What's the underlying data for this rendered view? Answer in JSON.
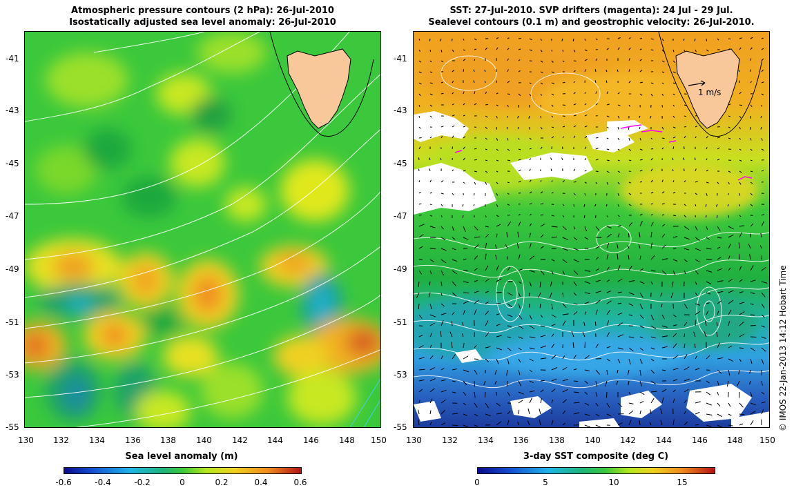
{
  "left_panel": {
    "title_line1": "Atmospheric pressure contours (2 hPa): 26-Jul-2010",
    "title_line2": "Isostatically adjusted sea level anomaly: 26-Jul-2010",
    "colorbar_label": "Sea level anomaly (m)",
    "colorbar_ticks": [
      "-0.6",
      "-0.4",
      "-0.2",
      "0",
      "0.2",
      "0.4",
      "0.6"
    ]
  },
  "right_panel": {
    "title_line1": "SST: 27-Jul-2010. SVP drifters (magenta): 24 Jul - 29 Jul.",
    "title_line2": "Sealevel contours (0.1 m) and geostrophic velocity: 26-Jul-2010.",
    "colorbar_label": "3-day SST composite (deg C)",
    "colorbar_ticks": [
      "0",
      "5",
      "10",
      "15"
    ],
    "scale_arrow_label": "1 m/s"
  },
  "axes": {
    "x_ticks": [
      "130",
      "132",
      "134",
      "136",
      "138",
      "140",
      "142",
      "144",
      "146",
      "148",
      "150"
    ],
    "y_ticks": [
      "-41",
      "-43",
      "-45",
      "-47",
      "-49",
      "-51",
      "-53",
      "-55"
    ]
  },
  "credit": "© IMOS 22-Jan-2013 14:12 Hobart Time",
  "colors": {
    "land": "#f8c89a",
    "contour": "#ffffff",
    "drifter": "#ff00ff",
    "background": "#ffffff"
  }
}
